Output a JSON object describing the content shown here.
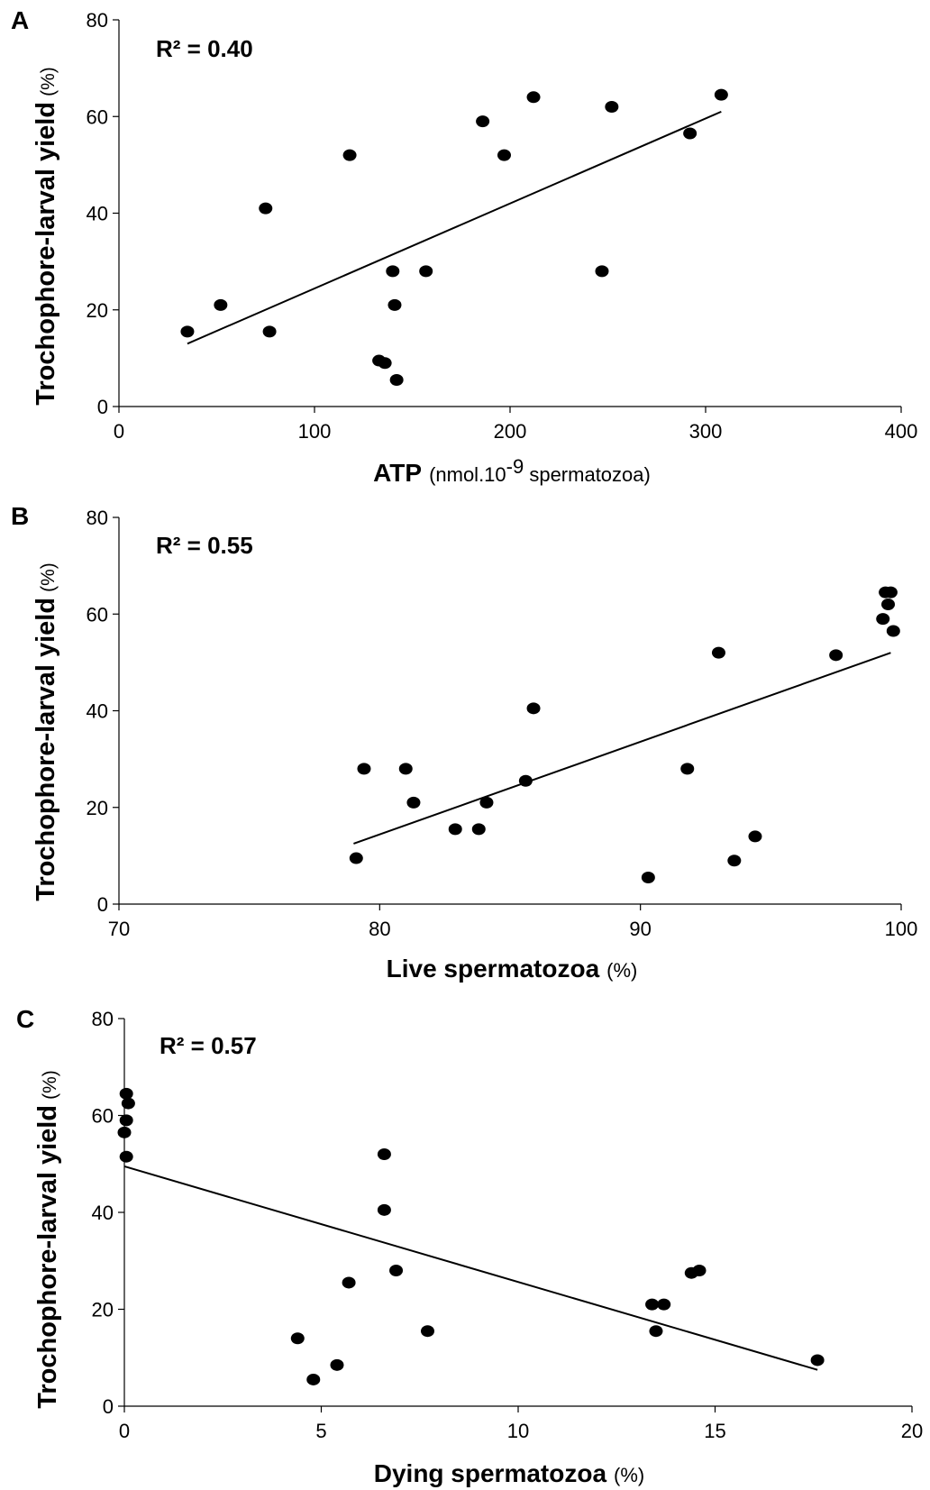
{
  "chart_data": [
    {
      "type": "scatter",
      "panel": "A",
      "annotation": "R² = 0.40",
      "xlabel": "ATP",
      "xlabel_unit_pre": "(nmol.10",
      "xlabel_unit_sup": "-9",
      "xlabel_unit_post": " spermatozoa)",
      "ylabel": "Trochophore-larval yield",
      "ylabel_unit": "(%)",
      "xlim": [
        0,
        400
      ],
      "ylim": [
        0,
        80
      ],
      "xticks": [
        0,
        100,
        200,
        300,
        400
      ],
      "yticks": [
        0,
        20,
        40,
        60,
        80
      ],
      "points": [
        [
          35,
          15.5
        ],
        [
          52,
          21
        ],
        [
          75,
          41
        ],
        [
          77,
          15.5
        ],
        [
          118,
          52
        ],
        [
          133,
          9.5
        ],
        [
          136,
          9
        ],
        [
          140,
          28
        ],
        [
          141,
          21
        ],
        [
          142,
          5.5
        ],
        [
          157,
          28
        ],
        [
          186,
          59
        ],
        [
          197,
          52
        ],
        [
          212,
          64
        ],
        [
          247,
          28
        ],
        [
          252,
          62
        ],
        [
          292,
          56.5
        ],
        [
          308,
          64.5
        ]
      ],
      "trendline": [
        [
          35,
          13
        ],
        [
          308,
          61
        ]
      ]
    },
    {
      "type": "scatter",
      "panel": "B",
      "annotation": "R² = 0.55",
      "xlabel": "Live spermatozoa",
      "xlabel_unit": "(%)",
      "ylabel": "Trochophore-larval yield",
      "ylabel_unit": "(%)",
      "xlim": [
        70,
        100
      ],
      "ylim": [
        0,
        80
      ],
      "xticks": [
        70,
        80,
        90,
        100
      ],
      "yticks": [
        0,
        20,
        40,
        60,
        80
      ],
      "points": [
        [
          79.1,
          9.5
        ],
        [
          79.4,
          28
        ],
        [
          81.0,
          28
        ],
        [
          81.3,
          21
        ],
        [
          82.9,
          15.5
        ],
        [
          83.8,
          15.5
        ],
        [
          84.1,
          21
        ],
        [
          85.6,
          25.5
        ],
        [
          85.9,
          40.5
        ],
        [
          90.3,
          5.5
        ],
        [
          91.8,
          28
        ],
        [
          93.0,
          52
        ],
        [
          93.6,
          9
        ],
        [
          94.4,
          14
        ],
        [
          97.5,
          51.5
        ],
        [
          99.3,
          59
        ],
        [
          99.4,
          64.5
        ],
        [
          99.5,
          62
        ],
        [
          99.6,
          64.5
        ],
        [
          99.7,
          56.5
        ]
      ],
      "trendline": [
        [
          79.0,
          12.5
        ],
        [
          99.6,
          52
        ]
      ]
    },
    {
      "type": "scatter",
      "panel": "C",
      "annotation": "R² = 0.57",
      "xlabel": "Dying spermatozoa",
      "xlabel_unit": "(%)",
      "ylabel": "Trochophore-larval yield",
      "ylabel_unit": "(%)",
      "xlim": [
        0,
        20
      ],
      "ylim": [
        0,
        80
      ],
      "xticks": [
        0,
        5,
        10,
        15,
        20
      ],
      "yticks": [
        0,
        20,
        40,
        60,
        80
      ],
      "points": [
        [
          0.05,
          64.5
        ],
        [
          0.1,
          62.5
        ],
        [
          0.05,
          59
        ],
        [
          0.0,
          56.5
        ],
        [
          0.05,
          51.5
        ],
        [
          4.4,
          14
        ],
        [
          4.8,
          5.5
        ],
        [
          5.4,
          8.5
        ],
        [
          5.7,
          25.5
        ],
        [
          6.6,
          52
        ],
        [
          6.6,
          40.5
        ],
        [
          6.9,
          28
        ],
        [
          7.7,
          15.5
        ],
        [
          13.4,
          21
        ],
        [
          13.5,
          15.5
        ],
        [
          13.7,
          21
        ],
        [
          14.4,
          27.5
        ],
        [
          14.6,
          28
        ],
        [
          17.6,
          9.5
        ]
      ],
      "trendline": [
        [
          0.0,
          49.5
        ],
        [
          17.6,
          7.5
        ]
      ]
    }
  ]
}
